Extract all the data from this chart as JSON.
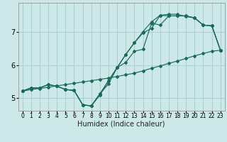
{
  "xlabel": "Humidex (Indice chaleur)",
  "bg_color": "#cce8e8",
  "grid_color": "#aacfcf",
  "line_color": "#1a6b5a",
  "xlim": [
    -0.5,
    23.5
  ],
  "ylim": [
    4.6,
    7.9
  ],
  "xtick_labels": [
    "0",
    "1",
    "2",
    "3",
    "4",
    "5",
    "6",
    "7",
    "8",
    "9",
    "10",
    "11",
    "12",
    "13",
    "14",
    "15",
    "16",
    "17",
    "18",
    "19",
    "20",
    "21",
    "22",
    "23"
  ],
  "ytick_positions": [
    5,
    6,
    7
  ],
  "series": [
    {
      "x": [
        0,
        1,
        2,
        3,
        4,
        5,
        6,
        7,
        8,
        9,
        10,
        11,
        12,
        13,
        14,
        15,
        16,
        17,
        18,
        19,
        20,
        21,
        22,
        23
      ],
      "y": [
        5.2,
        5.3,
        5.3,
        5.4,
        5.35,
        5.25,
        5.22,
        4.78,
        4.75,
        5.12,
        5.42,
        5.92,
        6.08,
        6.42,
        6.48,
        7.28,
        7.22,
        7.5,
        7.5,
        7.5,
        7.44,
        7.22,
        7.2,
        6.45
      ]
    },
    {
      "x": [
        0,
        1,
        2,
        3,
        4,
        5,
        6,
        7,
        8,
        9,
        10,
        11,
        12,
        13,
        14,
        15,
        16,
        17,
        18,
        19,
        20,
        21,
        22,
        23
      ],
      "y": [
        5.2,
        5.3,
        5.3,
        5.4,
        5.35,
        5.25,
        5.22,
        4.78,
        4.75,
        5.12,
        5.52,
        5.92,
        6.32,
        6.68,
        6.98,
        7.12,
        7.52,
        7.5,
        7.5,
        7.5,
        7.44,
        7.22,
        7.2,
        6.45
      ]
    },
    {
      "x": [
        0,
        1,
        2,
        3,
        4,
        5,
        6,
        7,
        8,
        9,
        10,
        11,
        12,
        13,
        14,
        15,
        16,
        17,
        18,
        19,
        20,
        21,
        22,
        23
      ],
      "y": [
        5.2,
        5.3,
        5.3,
        5.4,
        5.35,
        5.25,
        5.22,
        4.78,
        4.75,
        5.08,
        5.52,
        5.92,
        6.32,
        6.68,
        7.02,
        7.32,
        7.52,
        7.55,
        7.55,
        7.48,
        7.44,
        7.22,
        7.2,
        6.45
      ]
    },
    {
      "x": [
        0,
        1,
        2,
        3,
        4,
        5,
        6,
        7,
        8,
        9,
        10,
        11,
        12,
        13,
        14,
        15,
        16,
        17,
        18,
        19,
        20,
        21,
        22,
        23
      ],
      "y": [
        5.2,
        5.25,
        5.28,
        5.32,
        5.36,
        5.4,
        5.44,
        5.48,
        5.52,
        5.56,
        5.6,
        5.65,
        5.7,
        5.75,
        5.82,
        5.9,
        5.97,
        6.05,
        6.12,
        6.2,
        6.28,
        6.35,
        6.42,
        6.45
      ]
    }
  ]
}
